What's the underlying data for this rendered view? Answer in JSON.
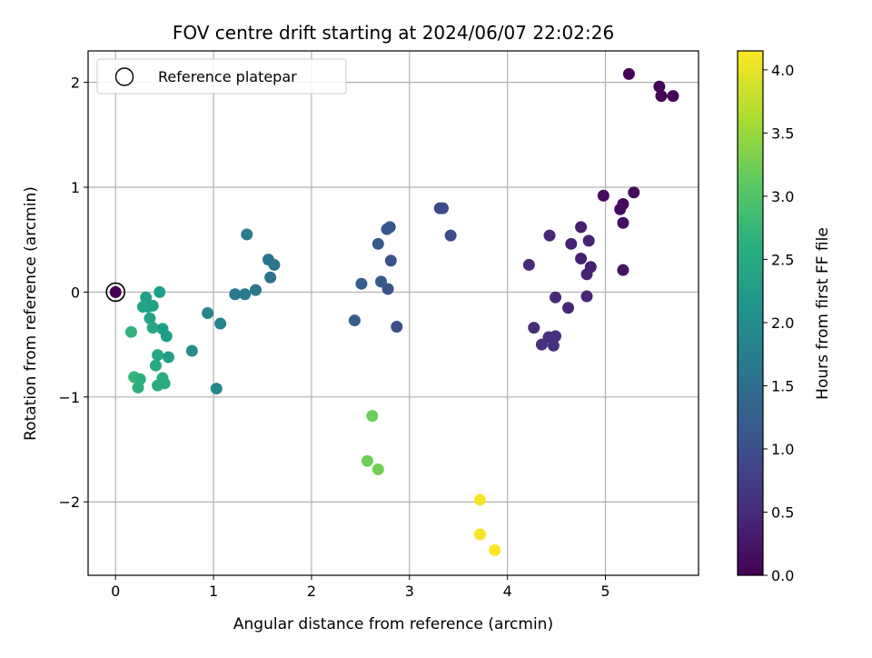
{
  "chart_data": {
    "type": "scatter",
    "title": "FOV centre drift starting at 2024/06/07 22:02:26",
    "xlabel": "Angular distance from reference (arcmin)",
    "ylabel": "Rotation from reference (arcmin)",
    "xlim": [
      -0.28,
      5.95
    ],
    "ylim": [
      -2.7,
      2.3
    ],
    "xticks": [
      0,
      1,
      2,
      3,
      4,
      5
    ],
    "yticks": [
      -2,
      -1,
      0,
      1,
      2
    ],
    "xtick_labels": [
      "0",
      "1",
      "2",
      "3",
      "4",
      "5"
    ],
    "ytick_labels": [
      "−2",
      "−1",
      "0",
      "1",
      "2"
    ],
    "grid": true,
    "colormap": "viridis",
    "colorbar": {
      "label": "Hours from first FF file",
      "range": [
        0.0,
        4.15
      ],
      "ticks": [
        0.0,
        0.5,
        1.0,
        1.5,
        2.0,
        2.5,
        3.0,
        3.5,
        4.0
      ],
      "tick_labels": [
        "0.0",
        "0.5",
        "1.0",
        "1.5",
        "2.0",
        "2.5",
        "3.0",
        "3.5",
        "4.0"
      ]
    },
    "legend": {
      "position": "top-left",
      "entries": [
        "Reference platepar"
      ]
    },
    "reference_point": {
      "x": 0.0,
      "y": 0.0
    },
    "points": [
      {
        "x": 5.24,
        "y": 2.08,
        "c": 0.02
      },
      {
        "x": 5.55,
        "y": 1.96,
        "c": 0.03
      },
      {
        "x": 5.57,
        "y": 1.87,
        "c": 0.04
      },
      {
        "x": 5.69,
        "y": 1.87,
        "c": 0.05
      },
      {
        "x": 4.98,
        "y": 0.92,
        "c": 0.12
      },
      {
        "x": 5.29,
        "y": 0.95,
        "c": 0.1
      },
      {
        "x": 5.18,
        "y": 0.84,
        "c": 0.11
      },
      {
        "x": 5.15,
        "y": 0.79,
        "c": 0.13
      },
      {
        "x": 5.18,
        "y": 0.66,
        "c": 0.15
      },
      {
        "x": 5.18,
        "y": 0.21,
        "c": 0.2
      },
      {
        "x": 4.75,
        "y": 0.62,
        "c": 0.35
      },
      {
        "x": 4.83,
        "y": 0.49,
        "c": 0.38
      },
      {
        "x": 4.65,
        "y": 0.46,
        "c": 0.4
      },
      {
        "x": 4.43,
        "y": 0.54,
        "c": 0.45
      },
      {
        "x": 4.75,
        "y": 0.32,
        "c": 0.36
      },
      {
        "x": 4.85,
        "y": 0.24,
        "c": 0.37
      },
      {
        "x": 4.81,
        "y": 0.17,
        "c": 0.39
      },
      {
        "x": 4.22,
        "y": 0.26,
        "c": 0.5
      },
      {
        "x": 4.49,
        "y": -0.05,
        "c": 0.48
      },
      {
        "x": 4.81,
        "y": -0.04,
        "c": 0.42
      },
      {
        "x": 4.62,
        "y": -0.15,
        "c": 0.44
      },
      {
        "x": 4.27,
        "y": -0.34,
        "c": 0.52
      },
      {
        "x": 4.42,
        "y": -0.43,
        "c": 0.55
      },
      {
        "x": 4.49,
        "y": -0.42,
        "c": 0.57
      },
      {
        "x": 4.35,
        "y": -0.5,
        "c": 0.58
      },
      {
        "x": 4.47,
        "y": -0.51,
        "c": 0.6
      },
      {
        "x": 3.31,
        "y": 0.8,
        "c": 0.9
      },
      {
        "x": 3.34,
        "y": 0.8,
        "c": 0.92
      },
      {
        "x": 3.42,
        "y": 0.54,
        "c": 0.95
      },
      {
        "x": 2.8,
        "y": 0.62,
        "c": 1.1
      },
      {
        "x": 2.77,
        "y": 0.6,
        "c": 1.12
      },
      {
        "x": 2.68,
        "y": 0.46,
        "c": 1.15
      },
      {
        "x": 2.81,
        "y": 0.3,
        "c": 1.05
      },
      {
        "x": 2.51,
        "y": 0.08,
        "c": 1.2
      },
      {
        "x": 2.71,
        "y": 0.1,
        "c": 1.18
      },
      {
        "x": 2.78,
        "y": 0.03,
        "c": 1.08
      },
      {
        "x": 2.44,
        "y": -0.27,
        "c": 1.25
      },
      {
        "x": 2.87,
        "y": -0.33,
        "c": 1.02
      },
      {
        "x": 1.34,
        "y": 0.55,
        "c": 1.75
      },
      {
        "x": 1.56,
        "y": 0.31,
        "c": 1.6
      },
      {
        "x": 1.62,
        "y": 0.26,
        "c": 1.62
      },
      {
        "x": 1.58,
        "y": 0.14,
        "c": 1.58
      },
      {
        "x": 1.43,
        "y": 0.02,
        "c": 1.65
      },
      {
        "x": 1.22,
        "y": -0.02,
        "c": 1.7
      },
      {
        "x": 1.32,
        "y": -0.02,
        "c": 1.68
      },
      {
        "x": 0.94,
        "y": -0.2,
        "c": 1.95
      },
      {
        "x": 1.07,
        "y": -0.3,
        "c": 1.85
      },
      {
        "x": 0.78,
        "y": -0.56,
        "c": 2.05
      },
      {
        "x": 1.03,
        "y": -0.92,
        "c": 1.9
      },
      {
        "x": 0.45,
        "y": 0.0,
        "c": 2.3
      },
      {
        "x": 0.31,
        "y": -0.05,
        "c": 2.35
      },
      {
        "x": 0.28,
        "y": -0.14,
        "c": 2.38
      },
      {
        "x": 0.33,
        "y": -0.14,
        "c": 2.4
      },
      {
        "x": 0.38,
        "y": -0.13,
        "c": 2.37
      },
      {
        "x": 0.35,
        "y": -0.25,
        "c": 2.42
      },
      {
        "x": 0.38,
        "y": -0.34,
        "c": 2.45
      },
      {
        "x": 0.48,
        "y": -0.35,
        "c": 2.32
      },
      {
        "x": 0.52,
        "y": -0.42,
        "c": 2.3
      },
      {
        "x": 0.16,
        "y": -0.38,
        "c": 2.7
      },
      {
        "x": 0.43,
        "y": -0.6,
        "c": 2.48
      },
      {
        "x": 0.41,
        "y": -0.7,
        "c": 2.5
      },
      {
        "x": 0.54,
        "y": -0.62,
        "c": 2.35
      },
      {
        "x": 0.19,
        "y": -0.81,
        "c": 2.75
      },
      {
        "x": 0.25,
        "y": -0.83,
        "c": 2.6
      },
      {
        "x": 0.48,
        "y": -0.82,
        "c": 2.55
      },
      {
        "x": 0.23,
        "y": -0.91,
        "c": 2.62
      },
      {
        "x": 0.43,
        "y": -0.89,
        "c": 2.58
      },
      {
        "x": 0.5,
        "y": -0.87,
        "c": 2.52
      },
      {
        "x": 0.0,
        "y": 0.0,
        "c": 0.0
      },
      {
        "x": 2.62,
        "y": -1.18,
        "c": 3.2
      },
      {
        "x": 2.57,
        "y": -1.61,
        "c": 3.22
      },
      {
        "x": 2.68,
        "y": -1.69,
        "c": 3.25
      },
      {
        "x": 3.72,
        "y": -1.98,
        "c": 4.1
      },
      {
        "x": 3.72,
        "y": -2.31,
        "c": 4.12
      },
      {
        "x": 3.87,
        "y": -2.46,
        "c": 4.15
      }
    ]
  }
}
